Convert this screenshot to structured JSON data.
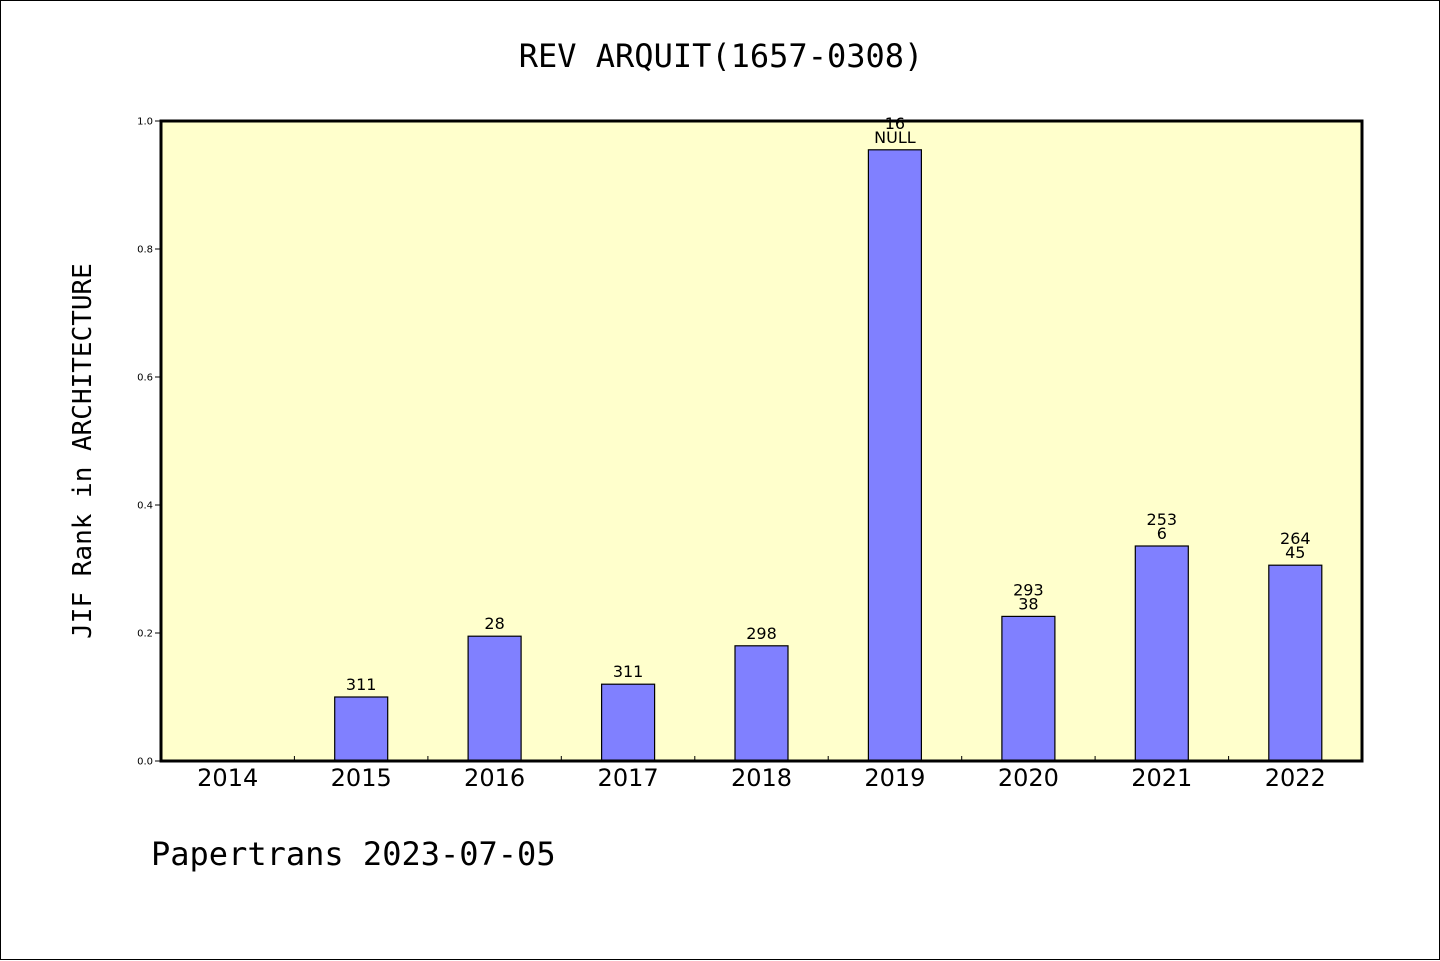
{
  "chart_data": {
    "type": "bar",
    "title": "REV ARQUIT(1657-0308)",
    "ylabel": "JIF Rank in ARCHITECTURE",
    "xlabel": "",
    "categories": [
      "2014",
      "2015",
      "2016",
      "2017",
      "2018",
      "2019",
      "2020",
      "2021",
      "2022"
    ],
    "values": [
      null,
      0.1,
      0.195,
      0.12,
      0.18,
      0.955,
      0.226,
      0.336,
      0.306
    ],
    "bar_labels": [
      null,
      [
        "311"
      ],
      [
        "28"
      ],
      [
        "311"
      ],
      [
        "298"
      ],
      [
        "16",
        "NULL"
      ],
      [
        "293",
        "38"
      ],
      [
        "253",
        "6"
      ],
      [
        "264",
        "45"
      ]
    ],
    "ylim": [
      0,
      1.0
    ],
    "yticks": [
      "0.0",
      "0.2",
      "0.4",
      "0.6",
      "0.8",
      "1.0"
    ],
    "ytick_values": [
      0,
      0.2,
      0.4,
      0.6,
      0.8,
      1.0
    ],
    "grid": false,
    "colors": {
      "plot_background": "#ffffcc",
      "bar_fill": "#8080ff",
      "bar_stroke": "#000000"
    }
  },
  "footer": {
    "text": "Papertrans 2023-07-05"
  }
}
